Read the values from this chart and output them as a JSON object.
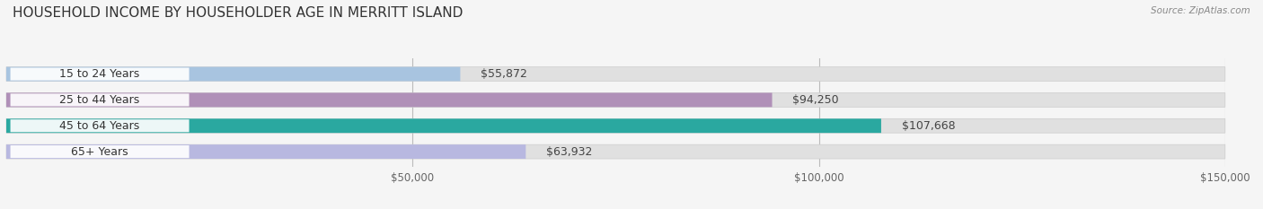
{
  "title": "HOUSEHOLD INCOME BY HOUSEHOLDER AGE IN MERRITT ISLAND",
  "source": "Source: ZipAtlas.com",
  "categories": [
    "15 to 24 Years",
    "25 to 44 Years",
    "45 to 64 Years",
    "65+ Years"
  ],
  "values": [
    55872,
    94250,
    107668,
    63932
  ],
  "bar_colors": [
    "#a8c4e0",
    "#b090b8",
    "#2aa8a0",
    "#b8b8e0"
  ],
  "bar_bg_color": "#e0e0e0",
  "label_fmt": [
    "$55,872",
    "$94,250",
    "$107,668",
    "$63,932"
  ],
  "xlim": [
    0,
    150000
  ],
  "xticks": [
    50000,
    100000,
    150000
  ],
  "xtick_labels": [
    "$50,000",
    "$100,000",
    "$150,000"
  ],
  "background_color": "#f5f5f5",
  "bar_height": 0.55,
  "title_fontsize": 11,
  "label_fontsize": 9,
  "tick_fontsize": 8.5,
  "source_fontsize": 7.5
}
